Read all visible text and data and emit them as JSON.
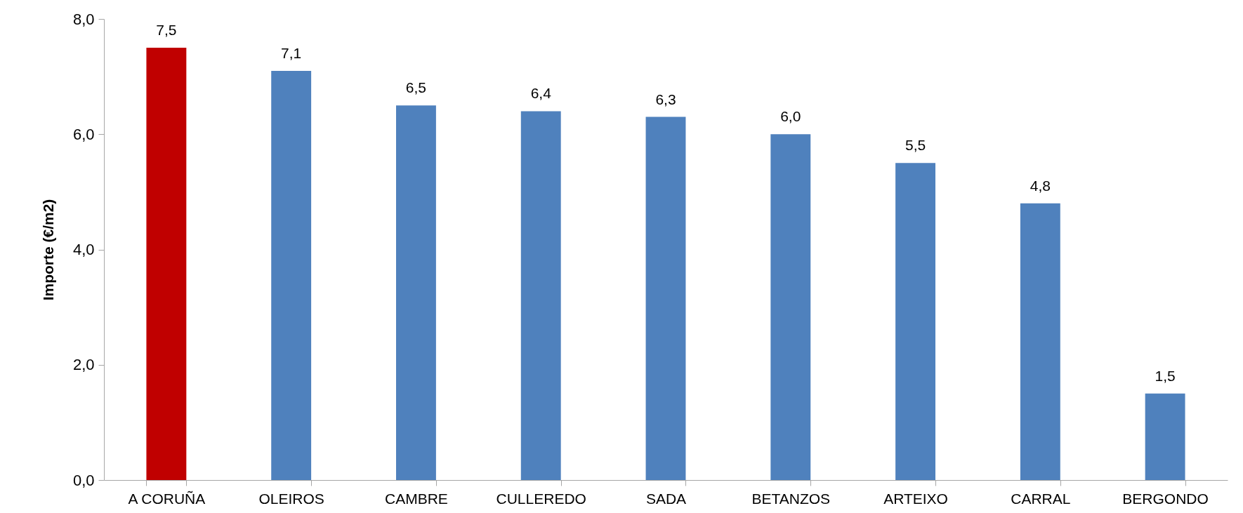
{
  "chart_data": {
    "type": "bar",
    "ylabel": "Importe (€/m2)",
    "categories": [
      "A CORUÑA",
      "OLEIROS",
      "CAMBRE",
      "CULLEREDO",
      "SADA",
      "BETANZOS",
      "ARTEIXO",
      "CARRAL",
      "BERGONDO"
    ],
    "values": [
      7.5,
      7.1,
      6.5,
      6.4,
      6.3,
      6.0,
      5.5,
      4.8,
      1.5
    ],
    "value_labels": [
      "7,5",
      "7,1",
      "6,5",
      "6,4",
      "6,3",
      "6,0",
      "5,5",
      "4,8",
      "1,5"
    ],
    "colors": [
      "#c00000",
      "#4f81bd",
      "#4f81bd",
      "#4f81bd",
      "#4f81bd",
      "#4f81bd",
      "#4f81bd",
      "#4f81bd",
      "#4f81bd"
    ],
    "ylim": [
      0,
      8
    ],
    "yticks": [
      {
        "value": 0,
        "label": "0,0"
      },
      {
        "value": 2,
        "label": "2,0"
      },
      {
        "value": 4,
        "label": "4,0"
      },
      {
        "value": 6,
        "label": "6,0"
      },
      {
        "value": 8,
        "label": "8,0"
      }
    ],
    "grid": false
  }
}
